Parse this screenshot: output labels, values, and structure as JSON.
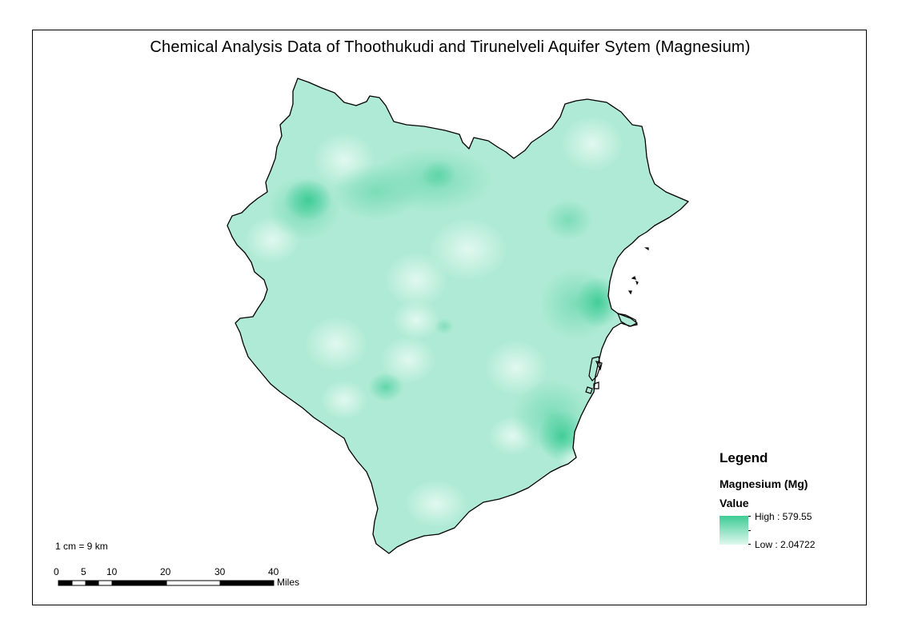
{
  "title": "Chemical Analysis Data of Thoothukudi and Tirunelveli Aquifer Sytem (Magnesium)",
  "legend": {
    "heading": "Legend",
    "layer_name": "Magnesium (Mg)",
    "field_name": "Value",
    "high_label": "High : 579.55",
    "low_label": "Low : 2.04722",
    "high_value": 579.55,
    "low_value": 2.04722,
    "high_color": "#3dcc95",
    "low_color": "#dff8ef"
  },
  "scale": {
    "ratio_text": "1 cm = 9 km",
    "ticks": [
      "0",
      "5",
      "10",
      "20",
      "30",
      "40"
    ],
    "unit": "Miles"
  },
  "map": {
    "base_color": "#aeead5",
    "outline_color": "#000000"
  }
}
